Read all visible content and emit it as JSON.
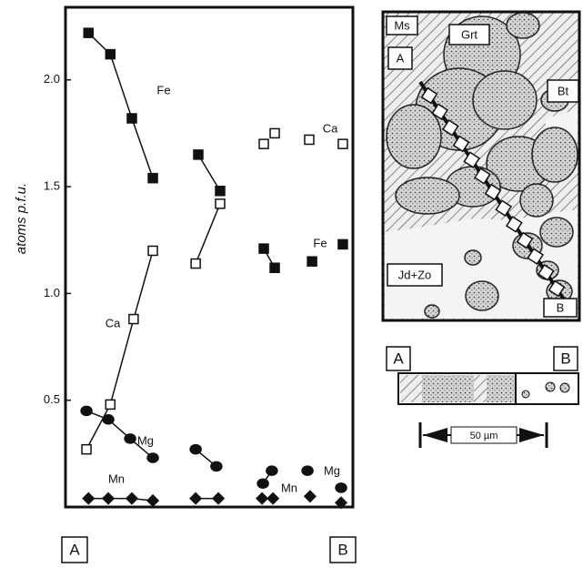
{
  "chart_data": {
    "type": "line",
    "y_label": "atoms p.f.u.",
    "xlim": [
      0,
      100
    ],
    "ylim": [
      0,
      2.34
    ],
    "yticks": [
      {
        "value": 0.5,
        "label": "0.5"
      },
      {
        "value": 1,
        "label": "1.0"
      },
      {
        "value": 1.5,
        "label": "1.5"
      },
      {
        "value": 2,
        "label": "2.0"
      }
    ],
    "series": [
      {
        "name": "Fe",
        "marker": "square-filled",
        "color": "#111111",
        "x": [
          8,
          15.6,
          23.1,
          30.4,
          null,
          46.2,
          53.8,
          null,
          69,
          72.8,
          null,
          85.8,
          null,
          96.5
        ],
        "values": [
          2.22,
          2.12,
          1.82,
          1.54,
          null,
          1.65,
          1.48,
          null,
          1.21,
          1.12,
          null,
          1.15,
          null,
          1.23
        ]
      },
      {
        "name": "Ca",
        "marker": "square-open",
        "color": "#111111",
        "x": [
          7.3,
          15.6,
          23.7,
          30.4,
          null,
          45.3,
          53.8,
          null,
          69,
          null,
          72.8,
          null,
          84.8,
          null,
          96.5
        ],
        "values": [
          0.27,
          0.48,
          0.88,
          1.2,
          null,
          1.14,
          1.42,
          null,
          1.7,
          null,
          1.75,
          null,
          1.72,
          null,
          1.7
        ]
      },
      {
        "name": "Mg",
        "marker": "circle",
        "color": "#111111",
        "x": [
          7.3,
          14.9,
          22.5,
          30.4,
          null,
          45.3,
          52.5,
          null,
          68.7,
          71.8,
          null,
          84.2,
          null,
          95.9
        ],
        "values": [
          0.45,
          0.41,
          0.32,
          0.23,
          null,
          0.27,
          0.19,
          null,
          0.11,
          0.17,
          null,
          0.17,
          null,
          0.09
        ]
      },
      {
        "name": "Mn",
        "marker": "diamond",
        "color": "#111111",
        "x": [
          8,
          14.9,
          23.1,
          30.4,
          null,
          45.3,
          53.2,
          null,
          68.4,
          72.2,
          null,
          85.1,
          null,
          95.9
        ],
        "values": [
          0.04,
          0.04,
          0.04,
          0.03,
          null,
          0.04,
          0.04,
          null,
          0.04,
          0.04,
          null,
          0.05,
          null,
          0.02
        ]
      }
    ],
    "annotations": [
      "Ca",
      "Fe",
      "Mg",
      "Mn"
    ],
    "end_labels": [
      "A",
      "B"
    ]
  },
  "diagram": {
    "labels": [
      "Ms",
      "Grt",
      "A",
      "Bt",
      "Jd+Zo",
      "B"
    ],
    "strip_labels": [
      "A",
      "B"
    ],
    "scale_bar": "50 µm"
  }
}
